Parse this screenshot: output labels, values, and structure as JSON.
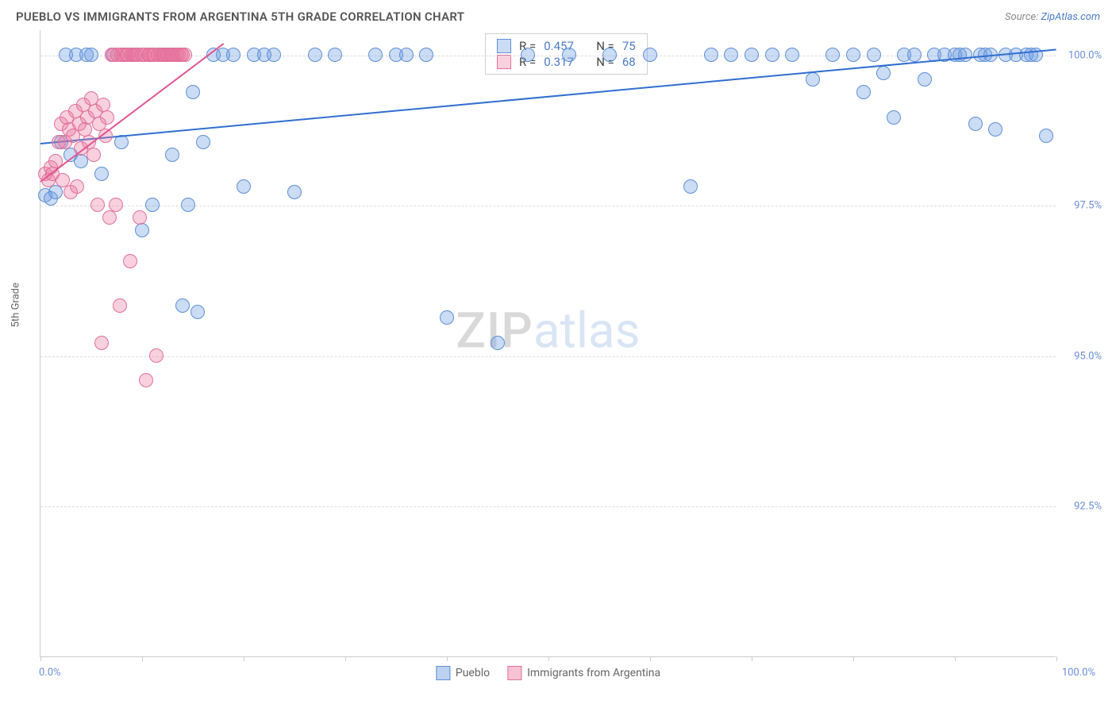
{
  "title": "PUEBLO VS IMMIGRANTS FROM ARGENTINA 5TH GRADE CORRELATION CHART",
  "source_prefix": "Source: ",
  "source_link": "ZipAtlas.com",
  "ylabel": "5th Grade",
  "xaxis": {
    "min_label": "0.0%",
    "max_label": "100.0%",
    "ticks_pct": [
      0,
      10,
      20,
      30,
      40,
      50,
      60,
      70,
      80,
      90,
      100
    ]
  },
  "yaxis": {
    "gridlines": [
      {
        "value_label": "100.0%",
        "frac": 0.96
      },
      {
        "value_label": "97.5%",
        "frac": 0.72
      },
      {
        "value_label": "95.0%",
        "frac": 0.48
      },
      {
        "value_label": "92.5%",
        "frac": 0.24
      }
    ]
  },
  "series": [
    {
      "name": "Pueblo",
      "color_fill": "rgba(105,155,225,0.35)",
      "color_stroke": "#5e8fd6",
      "trend_color": "#2f6fd0",
      "trend": {
        "x1": 0.0,
        "y1": 0.82,
        "x2": 1.0,
        "y2": 0.97
      },
      "stats": {
        "R": "0.457",
        "N": "75"
      },
      "marker_r": 9,
      "points": [
        [
          0.005,
          0.735
        ],
        [
          0.01,
          0.73
        ],
        [
          0.015,
          0.74
        ],
        [
          0.02,
          0.82
        ],
        [
          0.025,
          0.96
        ],
        [
          0.03,
          0.8
        ],
        [
          0.035,
          0.96
        ],
        [
          0.04,
          0.79
        ],
        [
          0.045,
          0.96
        ],
        [
          0.05,
          0.96
        ],
        [
          0.06,
          0.77
        ],
        [
          0.07,
          0.96
        ],
        [
          0.08,
          0.82
        ],
        [
          0.09,
          0.96
        ],
        [
          0.1,
          0.68
        ],
        [
          0.11,
          0.72
        ],
        [
          0.12,
          0.96
        ],
        [
          0.13,
          0.8
        ],
        [
          0.14,
          0.56
        ],
        [
          0.145,
          0.72
        ],
        [
          0.15,
          0.9
        ],
        [
          0.155,
          0.55
        ],
        [
          0.16,
          0.82
        ],
        [
          0.17,
          0.96
        ],
        [
          0.18,
          0.96
        ],
        [
          0.19,
          0.96
        ],
        [
          0.2,
          0.75
        ],
        [
          0.21,
          0.96
        ],
        [
          0.22,
          0.96
        ],
        [
          0.23,
          0.96
        ],
        [
          0.25,
          0.74
        ],
        [
          0.27,
          0.96
        ],
        [
          0.29,
          0.96
        ],
        [
          0.33,
          0.96
        ],
        [
          0.35,
          0.96
        ],
        [
          0.36,
          0.96
        ],
        [
          0.38,
          0.96
        ],
        [
          0.4,
          0.54
        ],
        [
          0.45,
          0.5
        ],
        [
          0.48,
          0.96
        ],
        [
          0.52,
          0.96
        ],
        [
          0.56,
          0.96
        ],
        [
          0.6,
          0.96
        ],
        [
          0.64,
          0.75
        ],
        [
          0.66,
          0.96
        ],
        [
          0.68,
          0.96
        ],
        [
          0.7,
          0.96
        ],
        [
          0.72,
          0.96
        ],
        [
          0.74,
          0.96
        ],
        [
          0.76,
          0.92
        ],
        [
          0.78,
          0.96
        ],
        [
          0.8,
          0.96
        ],
        [
          0.81,
          0.9
        ],
        [
          0.82,
          0.96
        ],
        [
          0.83,
          0.93
        ],
        [
          0.84,
          0.86
        ],
        [
          0.85,
          0.96
        ],
        [
          0.86,
          0.96
        ],
        [
          0.87,
          0.92
        ],
        [
          0.88,
          0.96
        ],
        [
          0.89,
          0.96
        ],
        [
          0.9,
          0.96
        ],
        [
          0.905,
          0.96
        ],
        [
          0.91,
          0.96
        ],
        [
          0.92,
          0.85
        ],
        [
          0.925,
          0.96
        ],
        [
          0.93,
          0.96
        ],
        [
          0.935,
          0.96
        ],
        [
          0.94,
          0.84
        ],
        [
          0.95,
          0.96
        ],
        [
          0.96,
          0.96
        ],
        [
          0.97,
          0.96
        ],
        [
          0.975,
          0.96
        ],
        [
          0.98,
          0.96
        ],
        [
          0.99,
          0.83
        ]
      ]
    },
    {
      "name": "Immigrants from Argentina",
      "color_fill": "rgba(235,120,160,0.35)",
      "color_stroke": "#e27099",
      "trend_color": "#e05590",
      "trend": {
        "x1": 0.0,
        "y1": 0.76,
        "x2": 0.18,
        "y2": 0.98
      },
      "stats": {
        "R": "0.317",
        "N": "68"
      },
      "marker_r": 9,
      "points": [
        [
          0.005,
          0.77
        ],
        [
          0.008,
          0.76
        ],
        [
          0.01,
          0.78
        ],
        [
          0.012,
          0.77
        ],
        [
          0.015,
          0.79
        ],
        [
          0.018,
          0.82
        ],
        [
          0.02,
          0.85
        ],
        [
          0.022,
          0.76
        ],
        [
          0.024,
          0.82
        ],
        [
          0.026,
          0.86
        ],
        [
          0.028,
          0.84
        ],
        [
          0.03,
          0.74
        ],
        [
          0.032,
          0.83
        ],
        [
          0.034,
          0.87
        ],
        [
          0.036,
          0.75
        ],
        [
          0.038,
          0.85
        ],
        [
          0.04,
          0.81
        ],
        [
          0.042,
          0.88
        ],
        [
          0.044,
          0.84
        ],
        [
          0.046,
          0.86
        ],
        [
          0.048,
          0.82
        ],
        [
          0.05,
          0.89
        ],
        [
          0.052,
          0.8
        ],
        [
          0.054,
          0.87
        ],
        [
          0.056,
          0.72
        ],
        [
          0.058,
          0.85
        ],
        [
          0.06,
          0.5
        ],
        [
          0.062,
          0.88
        ],
        [
          0.064,
          0.83
        ],
        [
          0.066,
          0.86
        ],
        [
          0.068,
          0.7
        ],
        [
          0.07,
          0.96
        ],
        [
          0.072,
          0.96
        ],
        [
          0.074,
          0.72
        ],
        [
          0.076,
          0.96
        ],
        [
          0.078,
          0.56
        ],
        [
          0.08,
          0.96
        ],
        [
          0.082,
          0.96
        ],
        [
          0.084,
          0.96
        ],
        [
          0.086,
          0.96
        ],
        [
          0.088,
          0.63
        ],
        [
          0.09,
          0.96
        ],
        [
          0.092,
          0.96
        ],
        [
          0.094,
          0.96
        ],
        [
          0.096,
          0.96
        ],
        [
          0.098,
          0.7
        ],
        [
          0.1,
          0.96
        ],
        [
          0.102,
          0.96
        ],
        [
          0.104,
          0.44
        ],
        [
          0.106,
          0.96
        ],
        [
          0.108,
          0.96
        ],
        [
          0.11,
          0.96
        ],
        [
          0.112,
          0.96
        ],
        [
          0.114,
          0.48
        ],
        [
          0.116,
          0.96
        ],
        [
          0.118,
          0.96
        ],
        [
          0.12,
          0.96
        ],
        [
          0.122,
          0.96
        ],
        [
          0.124,
          0.96
        ],
        [
          0.126,
          0.96
        ],
        [
          0.128,
          0.96
        ],
        [
          0.13,
          0.96
        ],
        [
          0.132,
          0.96
        ],
        [
          0.134,
          0.96
        ],
        [
          0.136,
          0.96
        ],
        [
          0.138,
          0.96
        ],
        [
          0.14,
          0.96
        ],
        [
          0.142,
          0.96
        ]
      ]
    }
  ],
  "stat_labels": {
    "R": "R =",
    "N": "N ="
  },
  "watermark": {
    "part1": "ZIP",
    "part2": "atlas"
  },
  "legend_bottom": [
    {
      "label": "Pueblo",
      "fill": "rgba(105,155,225,0.45)",
      "stroke": "#5e8fd6"
    },
    {
      "label": "Immigrants from Argentina",
      "fill": "rgba(235,120,160,0.45)",
      "stroke": "#e27099"
    }
  ]
}
